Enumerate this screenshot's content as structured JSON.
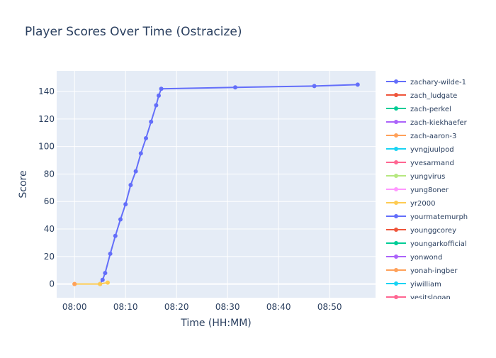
{
  "chart_data": {
    "type": "line",
    "title": "Player Scores Over Time (Ostracize)",
    "xlabel": "Time (HH:MM)",
    "ylabel": "Score",
    "x_tick_labels": [
      "08:00",
      "08:10",
      "08:20",
      "08:30",
      "08:40",
      "08:50"
    ],
    "x_range_minutes": [
      -3.5,
      59
    ],
    "y_ticks": [
      0,
      20,
      40,
      60,
      80,
      100,
      120,
      140
    ],
    "ylim": [
      -10,
      155
    ],
    "grid": true,
    "legend_position": "right",
    "series": [
      {
        "name": "zachary-wilde-1",
        "color": "#636efa",
        "x": [
          "08:05",
          "08:05:30",
          "08:06",
          "08:07",
          "08:08",
          "08:09",
          "08:10",
          "08:11",
          "08:12",
          "08:13",
          "08:14",
          "08:15",
          "08:16",
          "08:16:30",
          "08:17",
          "08:31:30",
          "08:47",
          "08:55:30"
        ],
        "y": [
          0,
          3,
          8,
          22,
          35,
          47,
          58,
          72,
          82,
          95,
          106,
          118,
          130,
          137,
          142,
          143,
          144,
          145
        ]
      },
      {
        "name": "yr2000",
        "color": "#fecb52",
        "x": [
          "08:00",
          "08:05",
          "08:06:30"
        ],
        "y": [
          0,
          0,
          1
        ]
      },
      {
        "name": "zach-aaron-3",
        "color": "#ffa15a",
        "x": [
          "08:00"
        ],
        "y": [
          0
        ]
      }
    ],
    "legend": [
      {
        "name": "zachary-wilde-1",
        "color": "#636efa"
      },
      {
        "name": "zach_ludgate",
        "color": "#ef553b"
      },
      {
        "name": "zach-perkel",
        "color": "#00cc96"
      },
      {
        "name": "zach-kiekhaefer",
        "color": "#ab63fa"
      },
      {
        "name": "zach-aaron-3",
        "color": "#ffa15a"
      },
      {
        "name": "yvngjuulpod",
        "color": "#19d3f3"
      },
      {
        "name": "yvesarmand",
        "color": "#ff6692"
      },
      {
        "name": "yungvirus",
        "color": "#b6e880"
      },
      {
        "name": "yung8oner",
        "color": "#ff97ff"
      },
      {
        "name": "yr2000",
        "color": "#fecb52"
      },
      {
        "name": "yourmatemurph",
        "color": "#636efa"
      },
      {
        "name": "younggcorey",
        "color": "#ef553b"
      },
      {
        "name": "youngarkofficial",
        "color": "#00cc96"
      },
      {
        "name": "yonwond",
        "color": "#ab63fa"
      },
      {
        "name": "yonah-ingber",
        "color": "#ffa15a"
      },
      {
        "name": "yiwilliam",
        "color": "#19d3f3"
      },
      {
        "name": "yesitslogan",
        "color": "#ff6692"
      }
    ]
  }
}
